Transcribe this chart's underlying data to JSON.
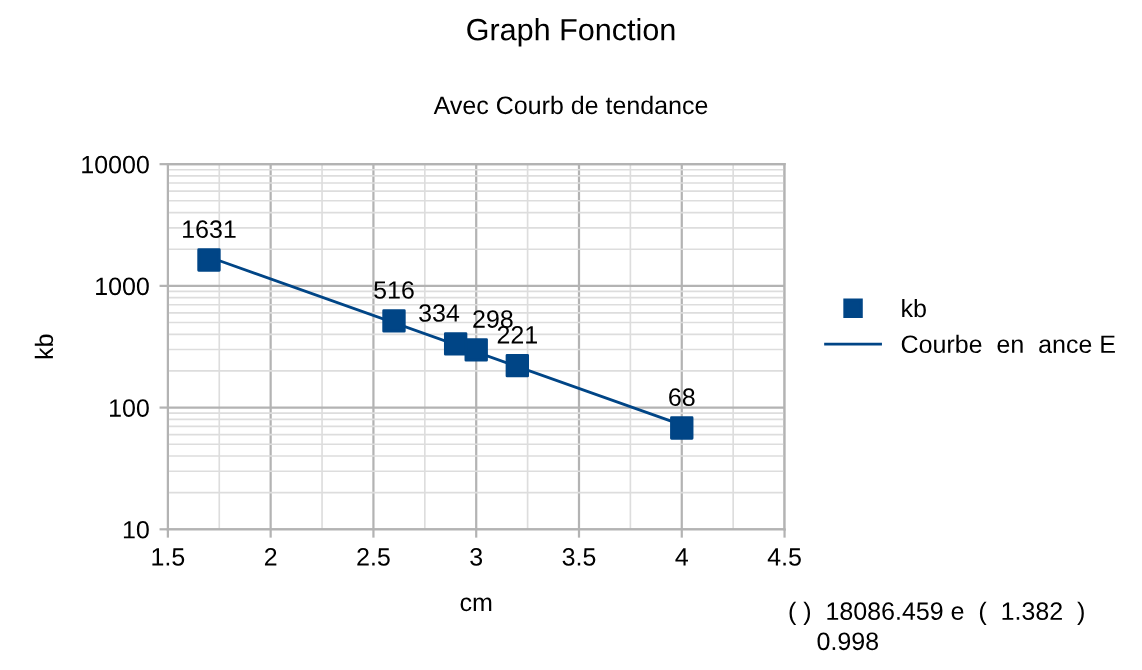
{
  "chart_data": {
    "type": "scatter",
    "title": "Graph Fonction",
    "subtitle": "Avec Courb de tendance",
    "xlabel": "cm",
    "ylabel": "kb",
    "series": [
      {
        "name": "kb",
        "color": "#004586",
        "marker": "square",
        "x": [
          1.7,
          2.6,
          2.9,
          3.0,
          3.2,
          4.0
        ],
        "values": [
          1631,
          516,
          334,
          298,
          221,
          68
        ],
        "data_labels": true
      },
      {
        "name": "Courbe  en  ance E",
        "type": "line",
        "color": "#004586",
        "marker": "none",
        "line_style": "solid",
        "x": [
          1.7,
          4.0
        ],
        "values": [
          1727,
          72
        ]
      }
    ],
    "xlim": [
      1.5,
      4.5
    ],
    "xticks": [
      1.5,
      2,
      2.5,
      3,
      3.5,
      4,
      4.5
    ],
    "ylim": [
      10,
      10000
    ],
    "yticks": [
      10,
      100,
      1000,
      10000
    ],
    "log": "y",
    "grid": true,
    "legend": "right",
    "annotations": [
      "( )  18086.459 e  (  1.382  )",
      "0.998"
    ]
  }
}
